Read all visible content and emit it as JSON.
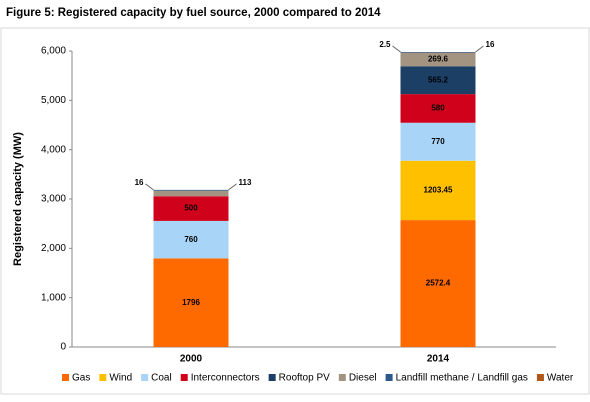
{
  "chart_data": {
    "type": "stacked-bar",
    "title": "Figure 5:  Registered capacity by fuel source, 2000 compared to 2014",
    "y_label": "Registered capacity (MW)",
    "categories": [
      "2000",
      "2014"
    ],
    "series": [
      {
        "name": "Gas",
        "color": "#ff6a00",
        "values": [
          1796,
          2572.4
        ]
      },
      {
        "name": "Wind",
        "color": "#ffc000",
        "values": [
          null,
          1203.45
        ]
      },
      {
        "name": "Coal",
        "color": "#a8d5f7",
        "values": [
          760,
          770
        ]
      },
      {
        "name": "Interconnectors",
        "color": "#d0021b",
        "values": [
          500,
          580
        ]
      },
      {
        "name": "Rooftop PV",
        "color": "#1c3f66",
        "values": [
          null,
          565.2
        ]
      },
      {
        "name": "Diesel",
        "color": "#a39482",
        "values": [
          113,
          269.6
        ]
      },
      {
        "name": "Landfill methane / Landfill gas",
        "color": "#2c5a8c",
        "values": [
          16,
          16
        ]
      },
      {
        "name": "Water",
        "color": "#b0581c",
        "values": [
          null,
          2.5
        ]
      }
    ],
    "ylim": [
      0,
      6000
    ],
    "yticks": [
      0,
      {
        "value": 1000,
        "label": "1,000"
      },
      {
        "value": 2000,
        "label": "2,000"
      },
      {
        "value": 3000,
        "label": "3,000"
      },
      {
        "value": 4000,
        "label": "4,000"
      },
      {
        "value": 5000,
        "label": "5,000"
      },
      {
        "value": 6000,
        "label": "6,000"
      }
    ],
    "grid": false
  }
}
